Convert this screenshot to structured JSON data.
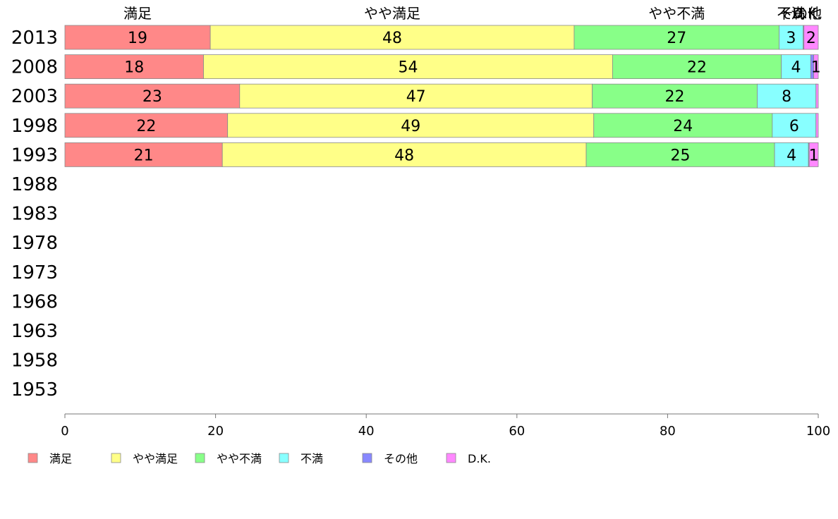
{
  "chart_data": {
    "type": "bar",
    "orientation": "horizontal",
    "stacked": true,
    "categories": [
      "2013",
      "2008",
      "2003",
      "1998",
      "1993",
      "1988",
      "1983",
      "1978",
      "1973",
      "1968",
      "1963",
      "1958",
      "1953"
    ],
    "xlim": [
      0,
      100
    ],
    "x_ticks": [
      "0",
      "20",
      "40",
      "60",
      "80",
      "100"
    ],
    "header_labels": [
      "満足",
      "やや満足",
      "やや不満",
      "不満",
      "その他",
      "D.K."
    ],
    "legend_position": "bottom-left",
    "series": [
      {
        "name": "満足",
        "color": "#ff8888",
        "values": [
          19.3,
          18.4,
          23.2,
          21.6,
          20.9,
          null,
          null,
          null,
          null,
          null,
          null,
          null,
          null
        ],
        "labels": [
          "19",
          "18",
          "23",
          "22",
          "21",
          "",
          "",
          "",
          "",
          "",
          "",
          "",
          ""
        ]
      },
      {
        "name": "やや満足",
        "color": "#ffff88",
        "values": [
          48.3,
          54.3,
          46.8,
          48.6,
          48.3,
          null,
          null,
          null,
          null,
          null,
          null,
          null,
          null
        ],
        "labels": [
          "48",
          "54",
          "47",
          "49",
          "48",
          "",
          "",
          "",
          "",
          "",
          "",
          "",
          ""
        ]
      },
      {
        "name": "やや不満",
        "color": "#88ff88",
        "values": [
          27.2,
          22.4,
          21.9,
          23.7,
          25.0,
          null,
          null,
          null,
          null,
          null,
          null,
          null,
          null
        ],
        "labels": [
          "27",
          "22",
          "22",
          "24",
          "25",
          "",
          "",
          "",
          "",
          "",
          "",
          "",
          ""
        ]
      },
      {
        "name": "不満",
        "color": "#88ffff",
        "values": [
          3.2,
          3.9,
          7.8,
          5.8,
          4.5,
          null,
          null,
          null,
          null,
          null,
          null,
          null,
          null
        ],
        "labels": [
          "3",
          "4",
          "8",
          "6",
          "4",
          "",
          "",
          "",
          "",
          "",
          "",
          "",
          ""
        ]
      },
      {
        "name": "その他",
        "color": "#8888ff",
        "values": [
          0.1,
          0.4,
          0.0,
          0.0,
          0.1,
          null,
          null,
          null,
          null,
          null,
          null,
          null,
          null
        ],
        "labels": [
          "",
          "",
          "",
          "",
          "",
          "",
          "",
          "",
          "",
          "",
          "",
          "",
          ""
        ]
      },
      {
        "name": "D.K.",
        "color": "#ff88ff",
        "values": [
          1.9,
          0.6,
          0.3,
          0.3,
          1.2,
          null,
          null,
          null,
          null,
          null,
          null,
          null,
          null
        ],
        "labels": [
          "2",
          "1",
          "",
          "",
          "1",
          "",
          "",
          "",
          "",
          "",
          "",
          "",
          ""
        ]
      }
    ]
  }
}
